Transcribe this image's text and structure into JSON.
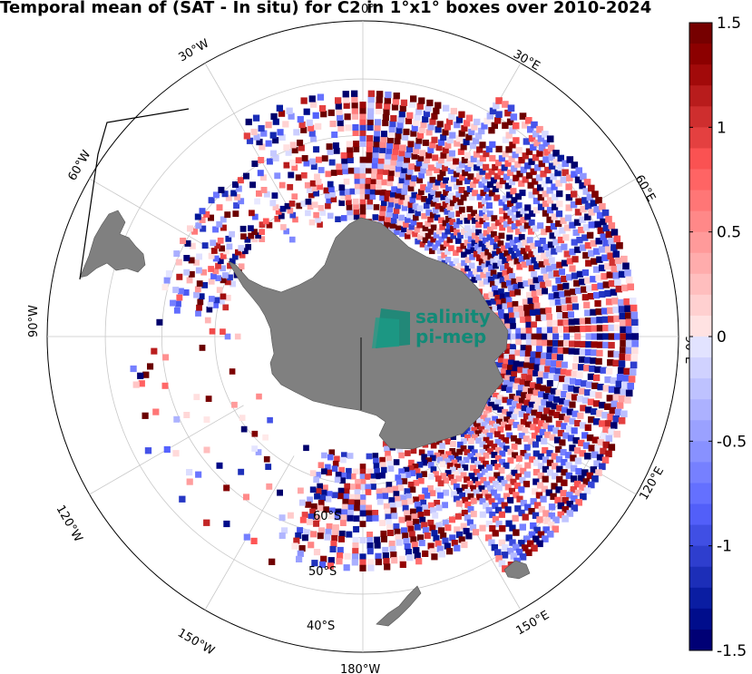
{
  "title": "Temporal mean of (SAT - In situ) for C2 in 1°x1° boxes over 2010-2024",
  "projection": "south-polar-stereographic",
  "latitude_circles": [
    {
      "lat": -60,
      "label": "60°S"
    },
    {
      "lat": -50,
      "label": "50°S"
    },
    {
      "lat": -40,
      "label": "40°S"
    }
  ],
  "longitude_labels": [
    {
      "lon": 0,
      "label": "0°"
    },
    {
      "lon": 30,
      "label": "30°E"
    },
    {
      "lon": 60,
      "label": "60°E"
    },
    {
      "lon": 90,
      "label": "90°E"
    },
    {
      "lon": 120,
      "label": "120°E"
    },
    {
      "lon": 150,
      "label": "150°E"
    },
    {
      "lon": 180,
      "label": "180°W"
    },
    {
      "lon": -150,
      "label": "150°W"
    },
    {
      "lon": -120,
      "label": "120°W"
    },
    {
      "lon": -90,
      "label": "90°W"
    },
    {
      "lon": -60,
      "label": "60°W"
    },
    {
      "lon": -30,
      "label": "30°W"
    }
  ],
  "colorbar": {
    "min": -1.5,
    "max": 1.5,
    "ticks": [
      {
        "value": 1.5,
        "label": "1.5"
      },
      {
        "value": 1,
        "label": "1"
      },
      {
        "value": 0.5,
        "label": "0.5"
      },
      {
        "value": 0,
        "label": "0"
      },
      {
        "value": -0.5,
        "label": "-0.5"
      },
      {
        "value": -1,
        "label": "-1"
      },
      {
        "value": -1.5,
        "label": "-1.5"
      }
    ],
    "colormap": "blue-white-red (diverging)",
    "colors": {
      "low": "#00006e",
      "mid_low": "#1e6be6",
      "neutral": "#ffffff",
      "mid_high": "#e6283c",
      "high": "#6e0000"
    }
  },
  "logo": {
    "line1": "salinity",
    "line2": "pi-mep",
    "color": "#128a77"
  },
  "land_color": "#808080",
  "chart_data": {
    "type": "heatmap",
    "variable": "SAT - In situ",
    "dataset": "C2",
    "period": "2010-2024",
    "value_range": [
      -1.5,
      1.5
    ]
  }
}
